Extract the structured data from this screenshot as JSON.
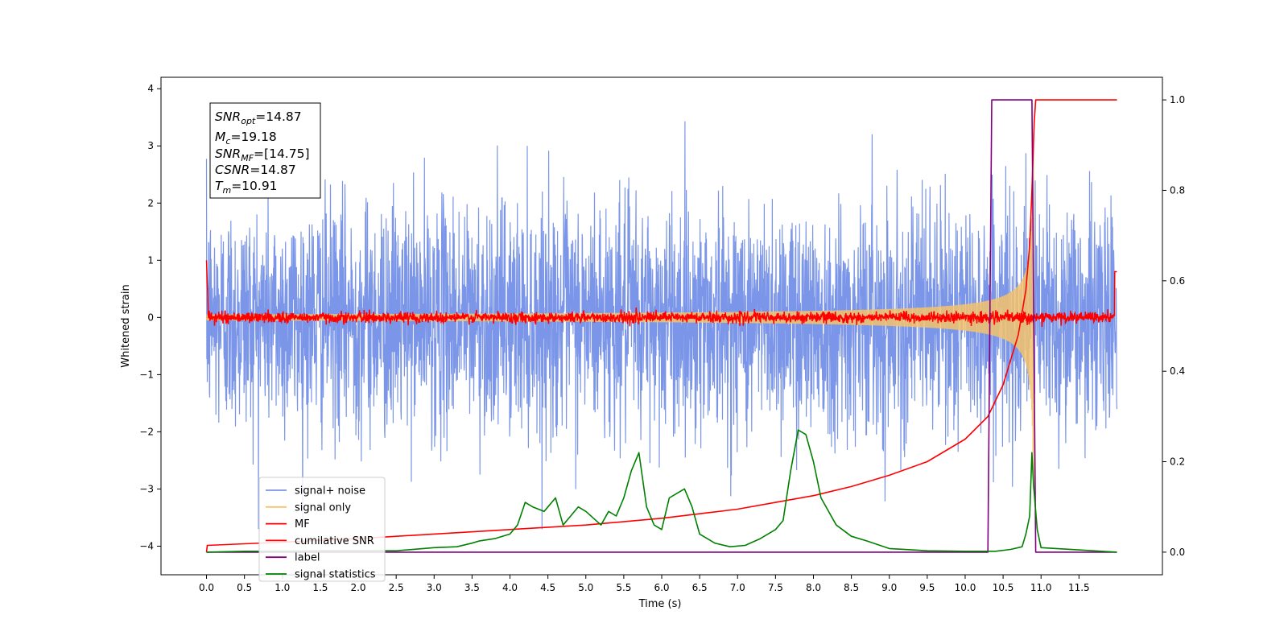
{
  "chart_data": {
    "type": "line",
    "title": "",
    "xlabel": "Time (s)",
    "ylabel": "Whitened strain",
    "ylabel_right": "",
    "xlim": [
      -0.6,
      12.6
    ],
    "ylim": [
      -4.5,
      4.2
    ],
    "ylim_right": [
      -0.05,
      1.05
    ],
    "xticks": [
      "0.0",
      "0.5",
      "1.0",
      "1.5",
      "2.0",
      "2.5",
      "3.0",
      "3.5",
      "4.0",
      "4.5",
      "5.0",
      "5.5",
      "6.0",
      "6.5",
      "7.0",
      "7.5",
      "8.0",
      "8.5",
      "9.0",
      "9.5",
      "10.0",
      "10.5",
      "11.0",
      "11.5"
    ],
    "yticks_left": [
      "4",
      "3",
      "2",
      "1",
      "0",
      "−1",
      "−2",
      "−3",
      "−4"
    ],
    "yticks_right": [
      "1.0",
      "0.8",
      "0.6",
      "0.4",
      "0.2",
      "0.0"
    ],
    "grid": false,
    "legend": "lower-left",
    "annotation": {
      "snr_opt": {
        "name": "SNR",
        "sub": "opt",
        "value": "=14.87"
      },
      "mc": {
        "name": "M",
        "sub": "c",
        "value": "=19.18"
      },
      "snr_mf": {
        "name": "SNR",
        "sub": "MF",
        "value": "=[14.75]"
      },
      "csnr": {
        "name": "CSNR",
        "sub": "",
        "value": "=14.87"
      },
      "tm": {
        "name": "T",
        "sub": "m",
        "value": "=10.91"
      }
    },
    "series": [
      {
        "name": "signal+ noise",
        "color": "#7b96e8",
        "axis": "left",
        "kind": "noise",
        "x_range": [
          0,
          12
        ],
        "amplitude_typical": 1.0,
        "peaks_max": 3.8,
        "peaks_min": -3.7
      },
      {
        "name": "signal only",
        "color": "#f5c36c",
        "axis": "left",
        "kind": "chirp",
        "x_range": [
          0,
          10.95
        ],
        "merger_time": 10.91,
        "peak_amplitude": 3.0
      },
      {
        "name": "MF",
        "color": "#ff0000",
        "axis": "left",
        "kind": "filter-output",
        "x_range": [
          0,
          12
        ],
        "amplitude_typical": 0.08
      },
      {
        "name": "cumilative SNR",
        "color": "#ff0000",
        "axis": "right",
        "x": [
          0.0,
          0.01,
          1.0,
          2.0,
          3.0,
          4.0,
          5.0,
          6.0,
          7.0,
          7.5,
          8.0,
          8.5,
          9.0,
          9.5,
          10.0,
          10.3,
          10.5,
          10.7,
          10.8,
          10.85,
          10.88,
          10.91,
          10.93,
          11.0,
          12.0
        ],
        "y": [
          0.0,
          0.015,
          0.022,
          0.03,
          0.04,
          0.05,
          0.06,
          0.075,
          0.095,
          0.11,
          0.125,
          0.145,
          0.17,
          0.2,
          0.25,
          0.3,
          0.37,
          0.48,
          0.58,
          0.68,
          0.8,
          0.95,
          1.0,
          1.0,
          1.0
        ]
      },
      {
        "name": "label",
        "color": "#800080",
        "axis": "right",
        "x": [
          0.0,
          10.3,
          10.35,
          10.88,
          10.93,
          12.0
        ],
        "y": [
          0.0,
          0.0,
          1.0,
          1.0,
          0.0,
          0.0
        ]
      },
      {
        "name": "signal statistics",
        "color": "#008000",
        "axis": "right",
        "x": [
          0.0,
          0.5,
          1.0,
          1.5,
          2.0,
          2.5,
          3.0,
          3.3,
          3.5,
          3.6,
          3.8,
          4.0,
          4.1,
          4.2,
          4.3,
          4.45,
          4.6,
          4.7,
          4.8,
          4.9,
          5.0,
          5.2,
          5.3,
          5.4,
          5.5,
          5.6,
          5.7,
          5.8,
          5.9,
          6.0,
          6.1,
          6.2,
          6.3,
          6.4,
          6.5,
          6.7,
          6.9,
          7.1,
          7.3,
          7.5,
          7.6,
          7.7,
          7.8,
          7.9,
          8.0,
          8.1,
          8.3,
          8.5,
          8.7,
          9.0,
          9.5,
          10.0,
          10.4,
          10.6,
          10.75,
          10.8,
          10.85,
          10.88,
          10.9,
          10.95,
          11.0,
          12.0
        ],
        "y": [
          0.0,
          0.002,
          0.002,
          0.003,
          0.003,
          0.003,
          0.01,
          0.012,
          0.02,
          0.025,
          0.03,
          0.04,
          0.06,
          0.11,
          0.1,
          0.09,
          0.12,
          0.06,
          0.08,
          0.1,
          0.09,
          0.06,
          0.09,
          0.08,
          0.12,
          0.18,
          0.22,
          0.1,
          0.06,
          0.05,
          0.12,
          0.13,
          0.14,
          0.1,
          0.04,
          0.02,
          0.012,
          0.015,
          0.03,
          0.05,
          0.07,
          0.18,
          0.27,
          0.26,
          0.2,
          0.12,
          0.06,
          0.035,
          0.025,
          0.008,
          0.003,
          0.002,
          0.002,
          0.006,
          0.012,
          0.04,
          0.08,
          0.22,
          0.15,
          0.05,
          0.01,
          0.0
        ]
      }
    ]
  }
}
